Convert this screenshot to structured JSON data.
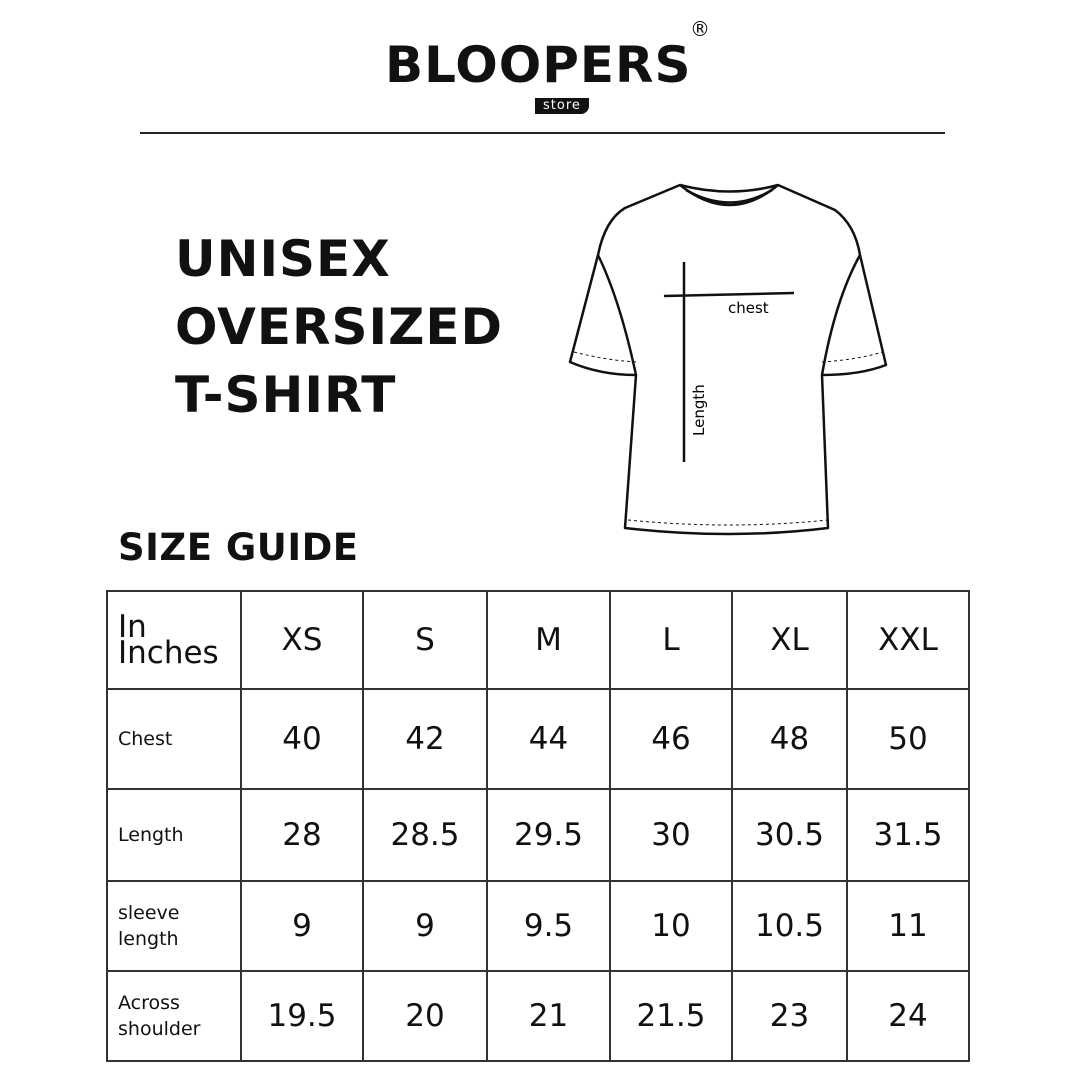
{
  "logo": {
    "brand": "BLOOPERS",
    "sub": "store",
    "mark": "®"
  },
  "title": [
    "UNISEX",
    "OVERSIZED",
    "T-SHIRT"
  ],
  "diagram": {
    "chest_label": "chest",
    "length_label": "Length"
  },
  "size_guide_heading": "SIZE GUIDE",
  "table": {
    "corner": "In Inches",
    "sizes": [
      "XS",
      "S",
      "M",
      "L",
      "XL",
      "XXL"
    ],
    "rows": [
      {
        "label": "Chest",
        "values": [
          "40",
          "42",
          "44",
          "46",
          "48",
          "50"
        ]
      },
      {
        "label": "Length",
        "values": [
          "28",
          "28.5",
          "29.5",
          "30",
          "30.5",
          "31.5"
        ]
      },
      {
        "label": "sleeve length",
        "values": [
          "9",
          "9",
          "9.5",
          "10",
          "10.5",
          "11"
        ]
      },
      {
        "label": "Across shoulder",
        "values": [
          "19.5",
          "20",
          "21",
          "21.5",
          "23",
          "24"
        ]
      }
    ]
  }
}
